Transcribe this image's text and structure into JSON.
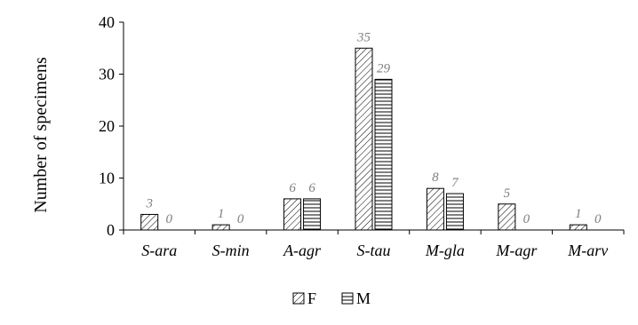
{
  "chart_data": {
    "type": "bar",
    "categories": [
      "S-ara",
      "S-min",
      "A-agr",
      "S-tau",
      "M-gla",
      "M-agr",
      "M-arv"
    ],
    "series": [
      {
        "name": "F",
        "values": [
          3,
          1,
          6,
          35,
          8,
          5,
          1
        ],
        "pattern": "diagonal-hatch"
      },
      {
        "name": "M",
        "values": [
          0,
          0,
          6,
          29,
          7,
          0,
          0
        ],
        "pattern": "horizontal-hatch"
      }
    ],
    "xlabel": "",
    "ylabel": "Number of specimens",
    "ylim": [
      0,
      40
    ],
    "yticks": [
      0,
      10,
      20,
      30,
      40
    ],
    "grid": false,
    "legend_position": "bottom-center",
    "colors": {
      "bar_stroke": "#000000",
      "data_label": "#7f7f7f",
      "frame": "#d9d9d9"
    }
  }
}
